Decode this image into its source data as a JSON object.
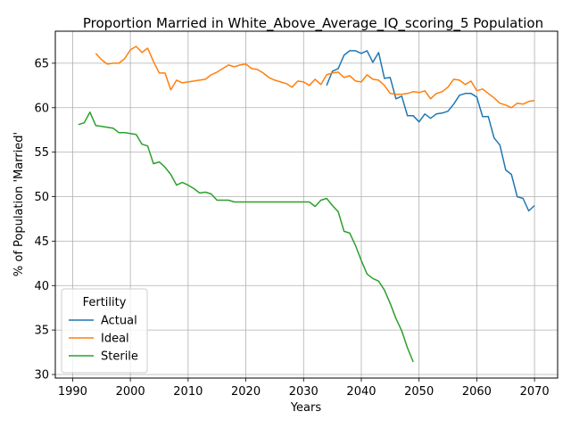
{
  "chart_data": {
    "type": "line",
    "title": "Proportion Married in White_Above_Average_IQ_scoring_5 Population",
    "xlabel": "Years",
    "ylabel": "% of Population 'Married'",
    "xlim": [
      1987,
      2074
    ],
    "ylim": [
      29.6,
      68.6
    ],
    "xticks": [
      1990,
      2000,
      2010,
      2020,
      2030,
      2040,
      2050,
      2060,
      2070
    ],
    "yticks": [
      30,
      35,
      40,
      45,
      50,
      55,
      60,
      65
    ],
    "grid": true,
    "legend": {
      "title": "Fertility",
      "placement": "lower-left"
    },
    "series": [
      {
        "name": "Actual",
        "color": "#1f77b4",
        "x": [
          2034,
          2035,
          2036,
          2037,
          2038,
          2039,
          2040,
          2041,
          2042,
          2043,
          2044,
          2045,
          2046,
          2047,
          2048,
          2049,
          2050,
          2051,
          2052,
          2053,
          2054,
          2055,
          2056,
          2057,
          2058,
          2059,
          2060,
          2061,
          2062,
          2063,
          2064,
          2065,
          2066,
          2067,
          2068,
          2069,
          2070
        ],
        "y": [
          62.5,
          64.1,
          64.4,
          65.9,
          66.4,
          66.4,
          66.1,
          66.4,
          65.1,
          66.2,
          63.3,
          63.4,
          61.0,
          61.3,
          59.1,
          59.1,
          58.4,
          59.3,
          58.8,
          59.3,
          59.4,
          59.6,
          60.4,
          61.4,
          61.6,
          61.6,
          61.2,
          59.0,
          59.0,
          56.6,
          55.8,
          53.0,
          52.5,
          50.0,
          49.8,
          48.4,
          49.0
        ]
      },
      {
        "name": "Ideal",
        "color": "#ff7f0e",
        "x": [
          1994,
          1995,
          1996,
          1997,
          1998,
          1999,
          2000,
          2001,
          2002,
          2003,
          2004,
          2005,
          2006,
          2007,
          2008,
          2009,
          2010,
          2011,
          2012,
          2013,
          2014,
          2015,
          2016,
          2017,
          2018,
          2019,
          2020,
          2021,
          2022,
          2023,
          2024,
          2025,
          2026,
          2027,
          2028,
          2029,
          2030,
          2031,
          2032,
          2033,
          2034,
          2035,
          2036,
          2037,
          2038,
          2039,
          2040,
          2041,
          2042,
          2043,
          2044,
          2045,
          2046,
          2047,
          2048,
          2049,
          2050,
          2051,
          2052,
          2053,
          2054,
          2055,
          2056,
          2057,
          2058,
          2059,
          2060,
          2061,
          2062,
          2063,
          2064,
          2065,
          2066,
          2067,
          2068,
          2069,
          2070
        ],
        "y": [
          66.1,
          65.4,
          64.9,
          65.0,
          65.0,
          65.5,
          66.5,
          66.9,
          66.2,
          66.7,
          65.2,
          63.9,
          63.9,
          62.0,
          63.1,
          62.8,
          62.9,
          63.0,
          63.1,
          63.2,
          63.7,
          64.0,
          64.4,
          64.8,
          64.6,
          64.8,
          64.9,
          64.4,
          64.3,
          63.9,
          63.4,
          63.1,
          62.9,
          62.7,
          62.3,
          63.0,
          62.9,
          62.5,
          63.2,
          62.6,
          63.7,
          63.9,
          64.0,
          63.4,
          63.6,
          63.0,
          62.9,
          63.7,
          63.2,
          63.1,
          62.5,
          61.6,
          61.5,
          61.5,
          61.6,
          61.8,
          61.7,
          61.9,
          61.0,
          61.6,
          61.8,
          62.3,
          63.2,
          63.1,
          62.6,
          63.0,
          61.9,
          62.1,
          61.6,
          61.1,
          60.5,
          60.3,
          60.0,
          60.5,
          60.4,
          60.7,
          60.8
        ]
      },
      {
        "name": "Sterile",
        "color": "#2ca02c",
        "x": [
          1991,
          1992,
          1993,
          1994,
          1995,
          1996,
          1997,
          1998,
          1999,
          2000,
          2001,
          2002,
          2003,
          2004,
          2005,
          2006,
          2007,
          2008,
          2009,
          2010,
          2011,
          2012,
          2013,
          2014,
          2015,
          2016,
          2017,
          2018,
          2019,
          2020,
          2021,
          2022,
          2023,
          2024,
          2025,
          2026,
          2027,
          2028,
          2029,
          2030,
          2031,
          2032,
          2033,
          2034,
          2035,
          2036,
          2037,
          2038,
          2039,
          2040,
          2041,
          2042,
          2043,
          2044,
          2045,
          2046,
          2047,
          2048,
          2049
        ],
        "y": [
          58.1,
          58.3,
          59.5,
          58.0,
          57.9,
          57.8,
          57.7,
          57.2,
          57.2,
          57.1,
          57.0,
          55.9,
          55.7,
          53.7,
          53.9,
          53.3,
          52.5,
          51.3,
          51.6,
          51.3,
          50.9,
          50.4,
          50.5,
          50.3,
          49.6,
          49.6,
          49.6,
          49.4,
          49.4,
          49.4,
          49.4,
          49.4,
          49.4,
          49.4,
          49.4,
          49.4,
          49.4,
          49.4,
          49.4,
          49.4,
          49.4,
          48.9,
          49.6,
          49.8,
          49.0,
          48.3,
          46.1,
          45.9,
          44.5,
          42.8,
          41.3,
          40.8,
          40.5,
          39.5,
          38.0,
          36.3,
          34.9,
          33.0,
          31.4
        ]
      }
    ]
  }
}
